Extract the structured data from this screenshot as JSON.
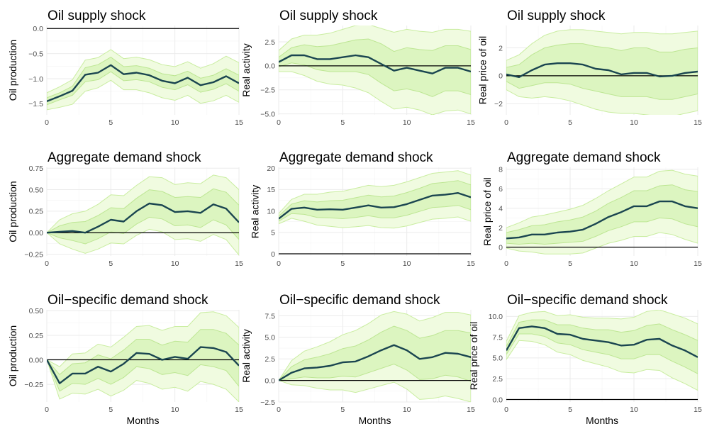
{
  "colors": {
    "outer_band": "#f0fbe0",
    "outer_band_stroke": "#c9eda0",
    "inner_band": "#dcf5c0",
    "inner_band_stroke": "#bde693",
    "median_line": "#1a4550",
    "zero_line": "#000000"
  },
  "chart_data": [
    {
      "type": "area",
      "title": "Oil supply shock",
      "ylabel": "Oil production",
      "xlabel": "",
      "x": [
        0,
        1,
        2,
        3,
        4,
        5,
        6,
        7,
        8,
        9,
        10,
        11,
        12,
        13,
        14,
        15
      ],
      "xlim": [
        0,
        15
      ],
      "xticks": [
        0,
        5,
        10,
        15
      ],
      "ylim": [
        -1.72,
        0.06
      ],
      "yticks": [
        -1.5,
        -1.0,
        -0.5,
        0.0
      ],
      "ytick_labels": [
        "−1.5",
        "−1.0",
        "−0.5",
        "0.0"
      ],
      "grid": true,
      "zero_line": true,
      "median": [
        -1.45,
        -1.35,
        -1.24,
        -0.92,
        -0.88,
        -0.73,
        -0.91,
        -0.88,
        -0.93,
        -1.04,
        -1.09,
        -0.98,
        -1.13,
        -1.07,
        -0.95,
        -1.09
      ],
      "inner_lower": [
        -1.52,
        -1.42,
        -1.33,
        -1.06,
        -1.02,
        -0.86,
        -1.04,
        -1.02,
        -1.06,
        -1.17,
        -1.22,
        -1.12,
        -1.27,
        -1.21,
        -1.1,
        -1.25
      ],
      "inner_upper": [
        -1.38,
        -1.28,
        -1.15,
        -0.78,
        -0.72,
        -0.57,
        -0.76,
        -0.74,
        -0.79,
        -0.9,
        -0.94,
        -0.85,
        -0.99,
        -0.93,
        -0.8,
        -0.93
      ],
      "outer_lower": [
        -1.62,
        -1.57,
        -1.51,
        -1.25,
        -1.18,
        -1.03,
        -1.22,
        -1.22,
        -1.28,
        -1.38,
        -1.43,
        -1.33,
        -1.49,
        -1.44,
        -1.33,
        -1.47
      ],
      "outer_upper": [
        -1.28,
        -1.16,
        -1.02,
        -0.63,
        -0.58,
        -0.42,
        -0.6,
        -0.57,
        -0.62,
        -0.72,
        -0.76,
        -0.66,
        -0.79,
        -0.7,
        -0.55,
        -0.68
      ]
    },
    {
      "type": "area",
      "title": "Oil supply shock",
      "ylabel": "Real activity",
      "xlabel": "",
      "x": [
        0,
        1,
        2,
        3,
        4,
        5,
        6,
        7,
        8,
        9,
        10,
        11,
        12,
        13,
        14,
        15
      ],
      "xlim": [
        0,
        15
      ],
      "xticks": [
        0,
        5,
        10,
        15
      ],
      "ylim": [
        -5.1,
        4.2
      ],
      "yticks": [
        -5.0,
        -2.5,
        0.0,
        2.5
      ],
      "ytick_labels": [
        "−5.0",
        "−2.5",
        "0.0",
        "2.5"
      ],
      "grid": true,
      "zero_line": true,
      "median": [
        0.4,
        1.1,
        1.1,
        0.7,
        0.7,
        0.9,
        1.1,
        0.9,
        0.2,
        -0.5,
        -0.2,
        -0.5,
        -0.8,
        -0.2,
        -0.2,
        -0.6
      ],
      "inner_lower": [
        -0.1,
        0.3,
        0.1,
        -0.4,
        -0.6,
        -0.6,
        -0.6,
        -0.9,
        -1.8,
        -2.6,
        -2.4,
        -2.7,
        -3.2,
        -2.6,
        -2.6,
        -3.0
      ],
      "inner_upper": [
        0.9,
        1.9,
        2.2,
        2.0,
        2.1,
        2.4,
        2.7,
        2.8,
        2.3,
        1.5,
        1.9,
        1.7,
        1.6,
        2.1,
        2.1,
        1.7
      ],
      "outer_lower": [
        -0.6,
        -0.6,
        -1.0,
        -1.6,
        -1.9,
        -2.0,
        -2.3,
        -2.8,
        -3.7,
        -4.5,
        -4.3,
        -4.6,
        -5.1,
        -4.7,
        -4.6,
        -5.0
      ],
      "outer_upper": [
        1.6,
        2.8,
        3.2,
        3.2,
        3.4,
        3.8,
        4.2,
        4.3,
        3.9,
        3.5,
        3.8,
        3.6,
        3.5,
        3.8,
        3.8,
        3.6
      ]
    },
    {
      "type": "area",
      "title": "Oil supply shock",
      "ylabel": "Real price of oil",
      "xlabel": "",
      "x": [
        0,
        1,
        2,
        3,
        4,
        5,
        6,
        7,
        8,
        9,
        10,
        11,
        12,
        13,
        14,
        15
      ],
      "xlim": [
        0,
        15
      ],
      "xticks": [
        0,
        5,
        10,
        15
      ],
      "ylim": [
        -2.8,
        3.6
      ],
      "yticks": [
        -2,
        0,
        2
      ],
      "ytick_labels": [
        "−2",
        "0",
        "2"
      ],
      "grid": true,
      "zero_line": true,
      "median": [
        0.1,
        -0.1,
        0.4,
        0.8,
        0.9,
        0.9,
        0.8,
        0.5,
        0.4,
        0.1,
        0.2,
        0.2,
        -0.05,
        0.0,
        0.2,
        0.3
      ],
      "inner_lower": [
        -0.4,
        -0.9,
        -0.7,
        -0.5,
        -0.5,
        -0.6,
        -0.9,
        -1.1,
        -1.3,
        -1.5,
        -1.5,
        -1.5,
        -1.7,
        -1.7,
        -1.5,
        -1.3
      ],
      "inner_upper": [
        0.6,
        0.8,
        1.5,
        2.0,
        2.2,
        2.3,
        2.3,
        2.1,
        2.0,
        1.8,
        2.0,
        2.0,
        1.7,
        1.7,
        1.9,
        2.0
      ],
      "outer_lower": [
        -1.0,
        -1.5,
        -1.6,
        -1.5,
        -1.6,
        -1.8,
        -2.1,
        -2.4,
        -2.6,
        -2.7,
        -2.7,
        -2.8,
        -2.9,
        -2.9,
        -2.7,
        -2.5
      ],
      "outer_upper": [
        1.1,
        1.5,
        2.3,
        2.9,
        3.2,
        3.3,
        3.3,
        3.2,
        3.1,
        3.0,
        3.1,
        3.1,
        3.0,
        3.0,
        3.1,
        3.2
      ]
    },
    {
      "type": "area",
      "title": "Aggregate demand shock",
      "ylabel": "Oil production",
      "xlabel": "",
      "x": [
        0,
        1,
        2,
        3,
        4,
        5,
        6,
        7,
        8,
        9,
        10,
        11,
        12,
        13,
        14,
        15
      ],
      "xlim": [
        0,
        15
      ],
      "xticks": [
        0,
        5,
        10,
        15
      ],
      "ylim": [
        -0.27,
        0.76
      ],
      "yticks": [
        -0.25,
        0.0,
        0.25,
        0.5,
        0.75
      ],
      "ytick_labels": [
        "−0.25",
        "0.00",
        "0.25",
        "0.50",
        "0.75"
      ],
      "grid": true,
      "zero_line": true,
      "median": [
        0.0,
        0.01,
        0.02,
        0.0,
        0.07,
        0.15,
        0.13,
        0.25,
        0.34,
        0.32,
        0.24,
        0.25,
        0.23,
        0.33,
        0.28,
        0.12
      ],
      "inner_lower": [
        0.0,
        -0.06,
        -0.09,
        -0.13,
        -0.07,
        0.01,
        -0.01,
        0.1,
        0.18,
        0.16,
        0.08,
        0.09,
        0.06,
        0.15,
        0.09,
        -0.08
      ],
      "inner_upper": [
        0.0,
        0.08,
        0.12,
        0.13,
        0.2,
        0.29,
        0.28,
        0.4,
        0.5,
        0.48,
        0.41,
        0.42,
        0.41,
        0.51,
        0.47,
        0.32
      ],
      "outer_lower": [
        0.0,
        -0.13,
        -0.19,
        -0.24,
        -0.19,
        -0.12,
        -0.13,
        -0.03,
        0.04,
        0.01,
        -0.08,
        -0.07,
        -0.1,
        -0.02,
        -0.08,
        -0.26
      ],
      "outer_upper": [
        0.0,
        0.15,
        0.22,
        0.25,
        0.33,
        0.44,
        0.43,
        0.55,
        0.65,
        0.64,
        0.56,
        0.58,
        0.57,
        0.67,
        0.64,
        0.5
      ]
    },
    {
      "type": "area",
      "title": "Aggregate demand shock",
      "ylabel": "Real activity",
      "xlabel": "",
      "x": [
        0,
        1,
        2,
        3,
        4,
        5,
        6,
        7,
        8,
        9,
        10,
        11,
        12,
        13,
        14,
        15
      ],
      "xlim": [
        0,
        15
      ],
      "xticks": [
        0,
        5,
        10,
        15
      ],
      "ylim": [
        -0.5,
        20.2
      ],
      "yticks": [
        0,
        5,
        10,
        15,
        20
      ],
      "ytick_labels": [
        "0",
        "5",
        "10",
        "15",
        "20"
      ],
      "grid": true,
      "zero_line": true,
      "median": [
        8.2,
        10.5,
        10.8,
        10.3,
        10.4,
        10.3,
        10.8,
        11.3,
        10.8,
        10.9,
        11.6,
        12.6,
        13.6,
        13.8,
        14.2,
        13.2
      ],
      "inner_lower": [
        7.6,
        9.4,
        9.2,
        8.5,
        8.4,
        8.2,
        8.5,
        8.9,
        8.4,
        8.4,
        9.0,
        9.9,
        10.8,
        11.0,
        11.3,
        10.3
      ],
      "inner_upper": [
        8.8,
        11.6,
        12.4,
        12.1,
        12.4,
        12.5,
        13.1,
        13.7,
        13.3,
        13.5,
        14.3,
        15.3,
        16.4,
        16.7,
        17.1,
        16.1
      ],
      "outer_lower": [
        7.0,
        8.3,
        7.6,
        6.7,
        6.4,
        6.1,
        6.3,
        6.6,
        6.1,
        6.0,
        6.5,
        7.3,
        8.1,
        8.3,
        8.6,
        7.6
      ],
      "outer_upper": [
        9.4,
        12.7,
        13.9,
        13.9,
        14.4,
        14.6,
        15.3,
        16.0,
        15.7,
        16.0,
        16.8,
        17.8,
        18.8,
        19.1,
        19.4,
        18.4
      ]
    },
    {
      "type": "area",
      "title": "Aggregate demand shock",
      "ylabel": "Real price of oil",
      "xlabel": "",
      "x": [
        0,
        1,
        2,
        3,
        4,
        5,
        6,
        7,
        8,
        9,
        10,
        11,
        12,
        13,
        14,
        15
      ],
      "xlim": [
        0,
        15
      ],
      "xticks": [
        0,
        5,
        10,
        15
      ],
      "ylim": [
        -0.9,
        8.2
      ],
      "yticks": [
        0,
        2,
        4,
        6,
        8
      ],
      "ytick_labels": [
        "0",
        "2",
        "4",
        "6",
        "8"
      ],
      "grid": true,
      "zero_line": true,
      "median": [
        0.9,
        1.0,
        1.3,
        1.3,
        1.5,
        1.6,
        1.8,
        2.4,
        3.1,
        3.6,
        4.2,
        4.2,
        4.7,
        4.7,
        4.2,
        4.0
      ],
      "inner_lower": [
        0.4,
        0.3,
        0.4,
        0.3,
        0.4,
        0.5,
        0.6,
        1.1,
        1.7,
        2.1,
        2.6,
        2.6,
        3.0,
        2.9,
        2.4,
        2.1
      ],
      "inner_upper": [
        1.5,
        1.8,
        2.2,
        2.3,
        2.6,
        2.8,
        3.1,
        3.7,
        4.5,
        5.1,
        5.8,
        5.8,
        6.3,
        6.4,
        5.9,
        5.7
      ],
      "outer_lower": [
        -0.1,
        -0.4,
        -0.5,
        -0.7,
        -0.7,
        -0.7,
        -0.6,
        -0.1,
        0.4,
        0.7,
        1.1,
        1.1,
        1.5,
        1.3,
        0.8,
        0.4
      ],
      "outer_upper": [
        2.0,
        2.5,
        3.1,
        3.3,
        3.6,
        3.9,
        4.3,
        5.0,
        5.8,
        6.5,
        7.2,
        7.2,
        7.8,
        7.9,
        7.5,
        7.3
      ]
    },
    {
      "type": "area",
      "title": "Oil−specific demand shock",
      "ylabel": "Oil production",
      "xlabel": "Months",
      "x": [
        0,
        1,
        2,
        3,
        4,
        5,
        6,
        7,
        8,
        9,
        10,
        11,
        12,
        13,
        14,
        15
      ],
      "xlim": [
        0,
        15
      ],
      "xticks": [
        0,
        5,
        10,
        15
      ],
      "ylim": [
        -0.43,
        0.51
      ],
      "yticks": [
        -0.25,
        0.0,
        0.25,
        0.5
      ],
      "ytick_labels": [
        "−0.25",
        "0.00",
        "0.25",
        "0.50"
      ],
      "grid": true,
      "zero_line": true,
      "median": [
        0.0,
        -0.24,
        -0.14,
        -0.14,
        -0.07,
        -0.12,
        -0.04,
        0.07,
        0.06,
        0.0,
        0.03,
        0.01,
        0.13,
        0.12,
        0.08,
        -0.06
      ],
      "inner_lower": [
        0.0,
        -0.32,
        -0.24,
        -0.25,
        -0.19,
        -0.25,
        -0.18,
        -0.07,
        -0.09,
        -0.15,
        -0.13,
        -0.16,
        -0.05,
        -0.07,
        -0.11,
        -0.27
      ],
      "inner_upper": [
        0.0,
        -0.15,
        -0.04,
        -0.03,
        0.05,
        0.01,
        0.1,
        0.21,
        0.21,
        0.15,
        0.19,
        0.18,
        0.31,
        0.31,
        0.27,
        0.15
      ],
      "outer_lower": [
        0.0,
        -0.4,
        -0.34,
        -0.35,
        -0.3,
        -0.37,
        -0.31,
        -0.21,
        -0.24,
        -0.3,
        -0.28,
        -0.32,
        -0.22,
        -0.25,
        -0.3,
        -0.43
      ],
      "outer_upper": [
        0.0,
        -0.07,
        0.06,
        0.07,
        0.16,
        0.13,
        0.23,
        0.34,
        0.35,
        0.3,
        0.34,
        0.34,
        0.48,
        0.49,
        0.45,
        0.33
      ]
    },
    {
      "type": "area",
      "title": "Oil−specific demand shock",
      "ylabel": "Real activity",
      "xlabel": "Months",
      "x": [
        0,
        1,
        2,
        3,
        4,
        5,
        6,
        7,
        8,
        9,
        10,
        11,
        12,
        13,
        14,
        15
      ],
      "xlim": [
        0,
        15
      ],
      "xticks": [
        0,
        5,
        10,
        15
      ],
      "ylim": [
        -2.5,
        8.2
      ],
      "yticks": [
        -2.5,
        0.0,
        2.5,
        5.0,
        7.5
      ],
      "ytick_labels": [
        "−2.5",
        "0.0",
        "2.5",
        "5.0",
        "7.5"
      ],
      "grid": true,
      "zero_line": true,
      "median": [
        0.0,
        0.9,
        1.4,
        1.5,
        1.7,
        2.1,
        2.2,
        2.8,
        3.5,
        4.1,
        3.5,
        2.5,
        2.7,
        3.2,
        3.1,
        2.7
      ],
      "inner_lower": [
        0.0,
        0.2,
        0.4,
        0.3,
        0.3,
        0.5,
        0.4,
        0.9,
        1.4,
        1.9,
        1.2,
        0.1,
        0.2,
        0.6,
        0.4,
        -0.1
      ],
      "inner_upper": [
        0.0,
        1.6,
        2.4,
        2.7,
        3.1,
        3.7,
        4.0,
        4.7,
        5.6,
        6.3,
        5.8,
        4.9,
        5.2,
        5.8,
        5.8,
        5.5
      ],
      "outer_lower": [
        0.0,
        -0.5,
        -0.6,
        -0.9,
        -1.1,
        -1.1,
        -1.4,
        -1.0,
        -0.6,
        -0.2,
        -1.0,
        -2.2,
        -2.1,
        -1.8,
        -2.1,
        -2.5
      ],
      "outer_upper": [
        0.0,
        2.3,
        3.4,
        3.9,
        4.5,
        5.3,
        5.8,
        6.6,
        7.6,
        8.0,
        7.7,
        6.9,
        7.3,
        7.9,
        7.9,
        7.6
      ]
    },
    {
      "type": "area",
      "title": "Oil−specific demand shock",
      "ylabel": "Real price of oil",
      "xlabel": "Months",
      "x": [
        0,
        1,
        2,
        3,
        4,
        5,
        6,
        7,
        8,
        9,
        10,
        11,
        12,
        13,
        14,
        15
      ],
      "xlim": [
        0,
        15
      ],
      "xticks": [
        0,
        5,
        10,
        15
      ],
      "ylim": [
        -0.3,
        10.8
      ],
      "yticks": [
        0.0,
        2.5,
        5.0,
        7.5,
        10.0
      ],
      "ytick_labels": [
        "0.0",
        "2.5",
        "5.0",
        "7.5",
        "10.0"
      ],
      "grid": true,
      "zero_line": true,
      "median": [
        5.9,
        8.6,
        8.8,
        8.6,
        7.9,
        7.8,
        7.3,
        7.1,
        6.9,
        6.5,
        6.6,
        7.2,
        7.3,
        6.5,
        5.9,
        5.1
      ],
      "inner_lower": [
        5.4,
        7.9,
        7.9,
        7.6,
        6.8,
        6.6,
        6.0,
        5.7,
        5.4,
        4.9,
        4.9,
        5.4,
        5.4,
        4.6,
        3.9,
        3.1
      ],
      "inner_upper": [
        6.4,
        9.3,
        9.6,
        9.6,
        9.0,
        9.0,
        8.6,
        8.4,
        8.4,
        8.1,
        8.3,
        8.9,
        9.1,
        8.4,
        7.8,
        7.1
      ],
      "outer_lower": [
        4.8,
        7.1,
        7.0,
        6.6,
        5.7,
        5.4,
        4.7,
        4.3,
        3.9,
        3.3,
        3.2,
        3.6,
        3.5,
        2.6,
        1.9,
        1.1
      ],
      "outer_upper": [
        7.0,
        10.1,
        10.5,
        10.6,
        10.1,
        10.2,
        9.9,
        9.8,
        9.8,
        9.7,
        9.9,
        10.6,
        10.8,
        10.3,
        9.8,
        9.1
      ]
    }
  ]
}
